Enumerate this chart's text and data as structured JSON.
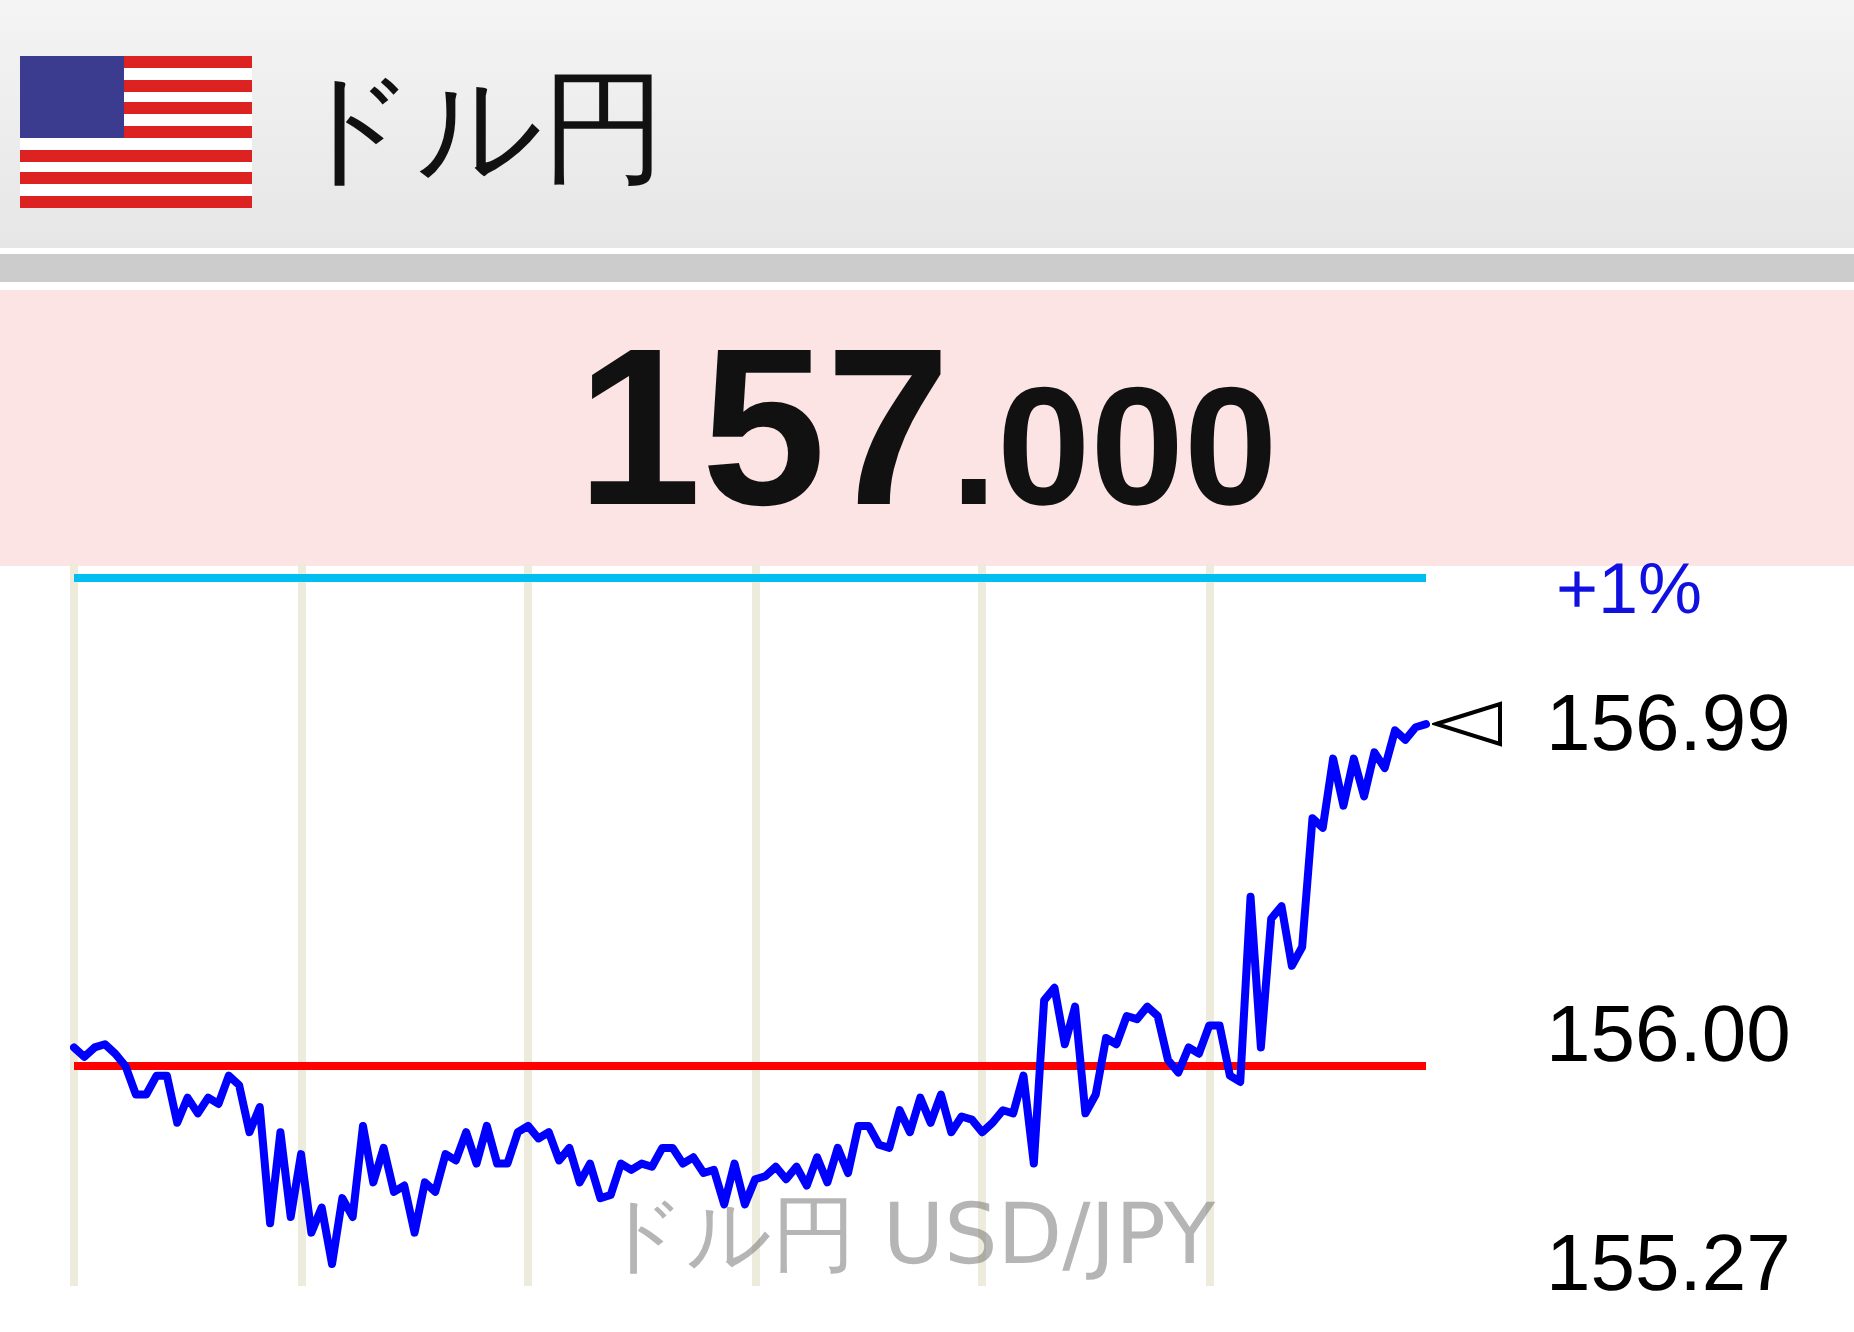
{
  "chart_data": {
    "type": "line",
    "title": "ドル円",
    "annotations": [
      "157.000",
      "ドル円 USD/JPY",
      "+1%"
    ],
    "categories": [
      null,
      null,
      null,
      null,
      null,
      null,
      null,
      null,
      null,
      null,
      null,
      null,
      null,
      null,
      null,
      null,
      null,
      null,
      null,
      null,
      null,
      null,
      null,
      null,
      null,
      null,
      null,
      null,
      null,
      null,
      null,
      null,
      null,
      null,
      null,
      null,
      null,
      null,
      null,
      null,
      null,
      null,
      null,
      null,
      null,
      null,
      null,
      null,
      null,
      null,
      null,
      null,
      null,
      null,
      null,
      null,
      null,
      null,
      null,
      null,
      null,
      null,
      null,
      null,
      null,
      null,
      null,
      null,
      null,
      null,
      null,
      null,
      null,
      null,
      null,
      null,
      null,
      null,
      null,
      null,
      null,
      null,
      null,
      null,
      null,
      null,
      null,
      null,
      null,
      null,
      null,
      null,
      null,
      null,
      null,
      null,
      null,
      null,
      null,
      null,
      null,
      null,
      null,
      null,
      null,
      null,
      null,
      null,
      null,
      null,
      null,
      null,
      null,
      null,
      null,
      null,
      null,
      null,
      null,
      null,
      null,
      null,
      null,
      null,
      null,
      null,
      null,
      null,
      null,
      null,
      null,
      null
    ],
    "series": [
      {
        "color": "#0000ff",
        "values": [
          155.96,
          155.93,
          155.96,
          155.97,
          155.94,
          155.9,
          155.81,
          155.81,
          155.87,
          155.87,
          155.72,
          155.8,
          155.75,
          155.8,
          155.78,
          155.87,
          155.84,
          155.69,
          155.77,
          155.4,
          155.69,
          155.42,
          155.62,
          155.37,
          155.45,
          155.27,
          155.48,
          155.42,
          155.71,
          155.53,
          155.64,
          155.5,
          155.52,
          155.37,
          155.53,
          155.5,
          155.62,
          155.6,
          155.69,
          155.59,
          155.71,
          155.59,
          155.59,
          155.69,
          155.71,
          155.67,
          155.69,
          155.6,
          155.64,
          155.53,
          155.59,
          155.48,
          155.49,
          155.59,
          155.57,
          155.59,
          155.58,
          155.64,
          155.64,
          155.59,
          155.61,
          155.56,
          155.57,
          155.46,
          155.59,
          155.46,
          155.54,
          155.55,
          155.58,
          155.54,
          155.58,
          155.52,
          155.61,
          155.53,
          155.64,
          155.56,
          155.71,
          155.71,
          155.65,
          155.64,
          155.76,
          155.69,
          155.8,
          155.72,
          155.81,
          155.69,
          155.74,
          155.73,
          155.69,
          155.72,
          155.76,
          155.75,
          155.87,
          155.59,
          156.11,
          156.15,
          155.97,
          156.09,
          155.75,
          155.81,
          155.99,
          155.97,
          156.06,
          156.05,
          156.09,
          156.06,
          155.92,
          155.88,
          155.96,
          155.94,
          156.03,
          156.03,
          155.87,
          155.85,
          156.44,
          155.96,
          156.37,
          156.41,
          156.22,
          156.28,
          156.69,
          156.66,
          156.88,
          156.73,
          156.88,
          156.76,
          156.9,
          156.85,
          156.97,
          156.94,
          156.98,
          156.99
        ]
      }
    ],
    "ylim": [
      155.2,
      157.5
    ],
    "yticks": [
      155.27,
      {
        "value": 156,
        "label": "156.00"
      },
      156.99
    ],
    "ref_lines": [
      {
        "axis": "y",
        "value": 155.9,
        "color": "#ff0000"
      },
      {
        "axis": "y",
        "value": 157.46,
        "color": "#00bff0"
      }
    ],
    "grid": "x",
    "marker": "none",
    "line_style": "solid"
  }
}
